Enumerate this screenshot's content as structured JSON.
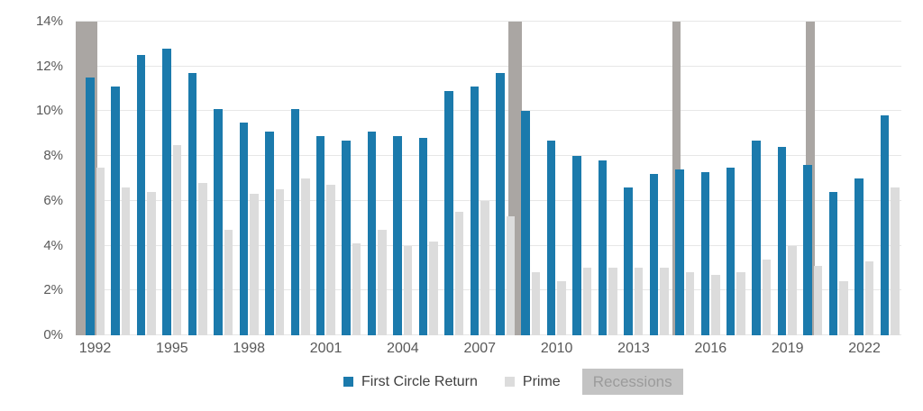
{
  "chart_data": {
    "type": "bar",
    "title": "",
    "xlabel": "",
    "ylabel": "",
    "categories": [
      1992,
      1993,
      1994,
      1995,
      1996,
      1997,
      1998,
      1999,
      2000,
      2001,
      2002,
      2003,
      2004,
      2005,
      2006,
      2007,
      2008,
      2009,
      2010,
      2011,
      2012,
      2013,
      2014,
      2015,
      2016,
      2017,
      2018,
      2019,
      2020,
      2021,
      2022,
      2023
    ],
    "series": [
      {
        "name": "First Circle Return",
        "color": "#1b7aac",
        "values": [
          11.5,
          11.1,
          12.5,
          12.8,
          11.7,
          10.1,
          9.5,
          9.1,
          10.1,
          8.9,
          8.7,
          9.1,
          8.9,
          8.8,
          10.9,
          11.1,
          11.7,
          10.0,
          8.7,
          8.0,
          7.8,
          6.6,
          7.2,
          7.4,
          7.3,
          7.5,
          8.7,
          8.4,
          7.6,
          6.4,
          7.0,
          9.8
        ]
      },
      {
        "name": "Prime",
        "color": "#dcdcdc",
        "values": [
          7.5,
          6.6,
          6.4,
          8.5,
          6.8,
          4.7,
          6.3,
          6.5,
          7.0,
          6.7,
          4.1,
          4.7,
          4.0,
          4.2,
          5.5,
          6.0,
          5.3,
          2.8,
          2.4,
          3.0,
          3.0,
          3.0,
          3.0,
          2.8,
          2.7,
          2.8,
          3.4,
          4.0,
          3.1,
          2.4,
          3.3,
          6.6
        ]
      }
    ],
    "recessions": {
      "label": "Recessions",
      "color": "#aaa6a3",
      "bands_year_spans": [
        [
          1991.25,
          1992.09
        ],
        [
          2008.1,
          2008.66
        ],
        [
          2014.52,
          2014.84
        ],
        [
          2019.72,
          2020.07
        ]
      ]
    },
    "ylim": [
      0,
      14
    ],
    "ytick_labels": [
      "0%",
      "2%",
      "4%",
      "6%",
      "8%",
      "10%",
      "12%",
      "14%"
    ],
    "xtick_years": [
      "1992",
      "1995",
      "1998",
      "2001",
      "2004",
      "2007",
      "2010",
      "2013",
      "2016",
      "2019",
      "2022"
    ],
    "grid": true,
    "legend_position": "bottom"
  },
  "legend": {
    "first_circle_label": "First Circle Return",
    "prime_label": "Prime",
    "recessions_label": "Recessions"
  },
  "colors": {
    "first_circle": "#1b7aac",
    "prime": "#dcdcdc",
    "recession_band": "#aaa6a3",
    "recession_legend_box": "#c3c3c3",
    "recession_legend_text": "#9b9b9b",
    "gridline": "#e7e7e7",
    "axis_text": "#595959"
  }
}
